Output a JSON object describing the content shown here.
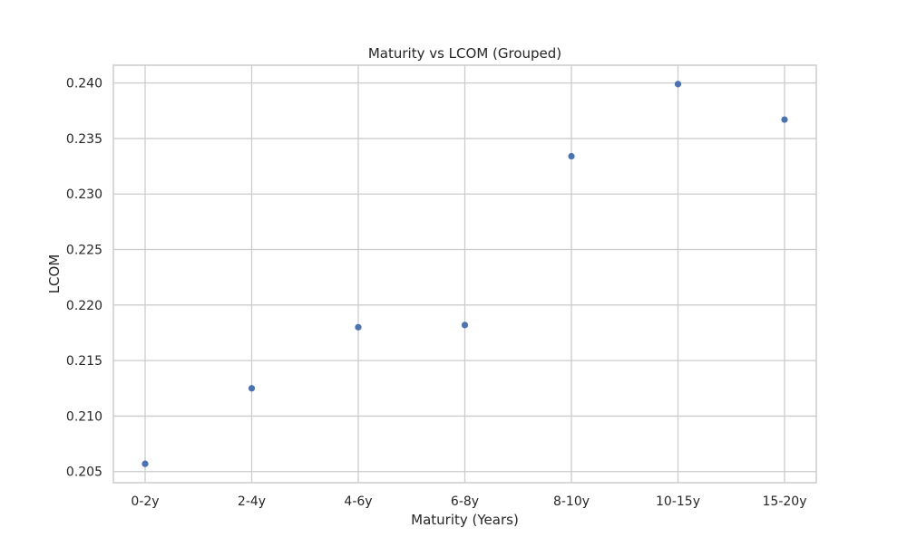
{
  "chart_data": {
    "type": "scatter",
    "title": "Maturity vs LCOM (Grouped)",
    "xlabel": "Maturity (Years)",
    "ylabel": "LCOM",
    "categories": [
      "0-2y",
      "2-4y",
      "4-6y",
      "6-8y",
      "8-10y",
      "10-15y",
      "15-20y"
    ],
    "series": [
      {
        "values": [
          0.2057,
          0.2125,
          0.218,
          0.2182,
          0.2334,
          0.2399,
          0.2367
        ],
        "color": "#4c72b0"
      }
    ],
    "ylim": [
      0.204,
      0.2416
    ],
    "yticks": [
      0.205,
      0.21,
      0.215,
      0.22,
      0.225,
      0.23,
      0.235,
      0.24
    ],
    "ytick_labels": [
      "0.205",
      "0.210",
      "0.215",
      "0.220",
      "0.225",
      "0.230",
      "0.235",
      "0.240"
    ],
    "grid": true,
    "colors": {
      "grid": "#cccccc",
      "frame": "#cccccc",
      "text": "#262626",
      "marker": "#4c72b0"
    }
  }
}
